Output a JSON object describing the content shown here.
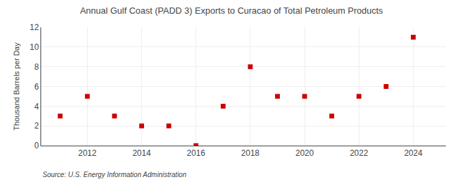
{
  "chart_data": {
    "type": "scatter",
    "title": "Annual Gulf Coast (PADD 3) Exports to Curacao of Total Petroleum Products",
    "ylabel": "Thousand Barrels per Day",
    "annotations": [
      "Source: U.S. Energy Information Administration"
    ],
    "x": [
      2011,
      2012,
      2013,
      2014,
      2015,
      2016,
      2017,
      2018,
      2019,
      2020,
      2021,
      2022,
      2023,
      2024
    ],
    "values": [
      3,
      5,
      3,
      2,
      2,
      0,
      4,
      8,
      5,
      5,
      3,
      5,
      6,
      11
    ],
    "color": "#cc0000",
    "marker": "square",
    "xlim": [
      2010.3,
      2025.2
    ],
    "xticks": [
      2012,
      2014,
      2016,
      2018,
      2020,
      2022,
      2024
    ],
    "ylim": [
      0,
      12
    ],
    "yticks": [
      0,
      2,
      4,
      6,
      8,
      10,
      12
    ],
    "grid": true
  }
}
